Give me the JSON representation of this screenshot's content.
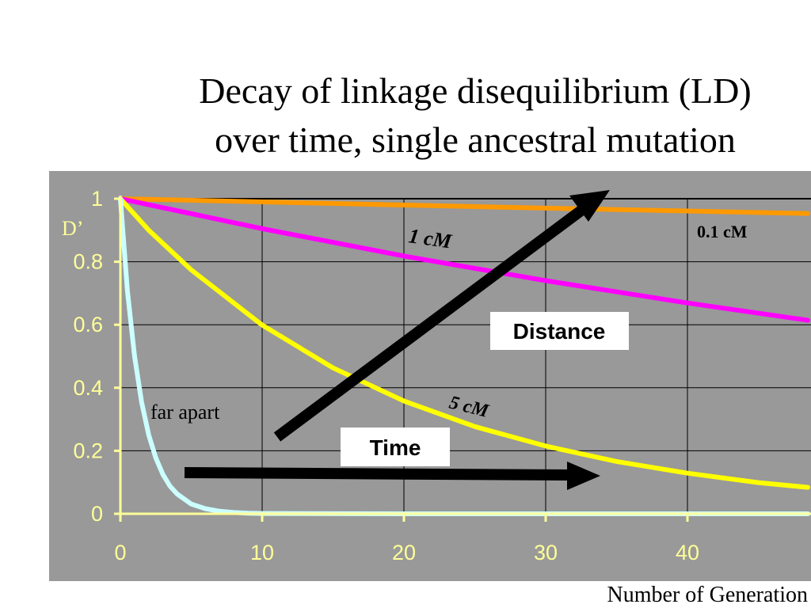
{
  "title": {
    "line1": "Decay of linkage disequilibrium (LD)",
    "line2": "over time, single ancestral mutation"
  },
  "chart_data": {
    "type": "line",
    "xlabel": "Number of Generation",
    "ylabel": "D’",
    "xlim": [
      0,
      50
    ],
    "ylim": [
      0,
      1
    ],
    "xticks": [
      "0",
      "10",
      "20",
      "30",
      "40"
    ],
    "yticks": [
      "0",
      "0.2",
      "0.4",
      "0.6",
      "0.8",
      "1"
    ],
    "grid": true,
    "colors": {
      "plot_background": "#999999",
      "axis": "#ffff99",
      "grid": "#000000"
    },
    "series": [
      {
        "name": "0.1 cM",
        "color": "#ff9900",
        "x": [
          0,
          10,
          20,
          30,
          40,
          48.5
        ],
        "y": [
          1,
          0.99,
          0.98,
          0.97,
          0.961,
          0.953
        ]
      },
      {
        "name": "1 cM",
        "color": "#ff00ff",
        "x": [
          0,
          10,
          20,
          30,
          40,
          48.5
        ],
        "y": [
          1,
          0.905,
          0.818,
          0.74,
          0.669,
          0.614
        ]
      },
      {
        "name": "5 cM",
        "color": "#ffff00",
        "x": [
          0,
          2,
          5,
          10,
          15,
          20,
          25,
          30,
          35,
          40,
          45,
          48.5
        ],
        "y": [
          1,
          0.9,
          0.774,
          0.599,
          0.463,
          0.358,
          0.277,
          0.215,
          0.166,
          0.129,
          0.099,
          0.084
        ]
      },
      {
        "name": "far apart",
        "color": "#ccffff",
        "x": [
          0,
          0.5,
          1,
          1.5,
          2,
          2.5,
          3,
          3.5,
          4,
          5,
          6,
          7,
          8,
          9,
          10,
          20,
          30,
          40,
          48.5
        ],
        "y": [
          1,
          0.707,
          0.5,
          0.354,
          0.25,
          0.177,
          0.125,
          0.088,
          0.063,
          0.031,
          0.016,
          0.008,
          0.004,
          0.002,
          0.001,
          0,
          0,
          0,
          0
        ]
      }
    ],
    "annotations": {
      "distance_label": "Distance",
      "time_label": "Time"
    }
  }
}
